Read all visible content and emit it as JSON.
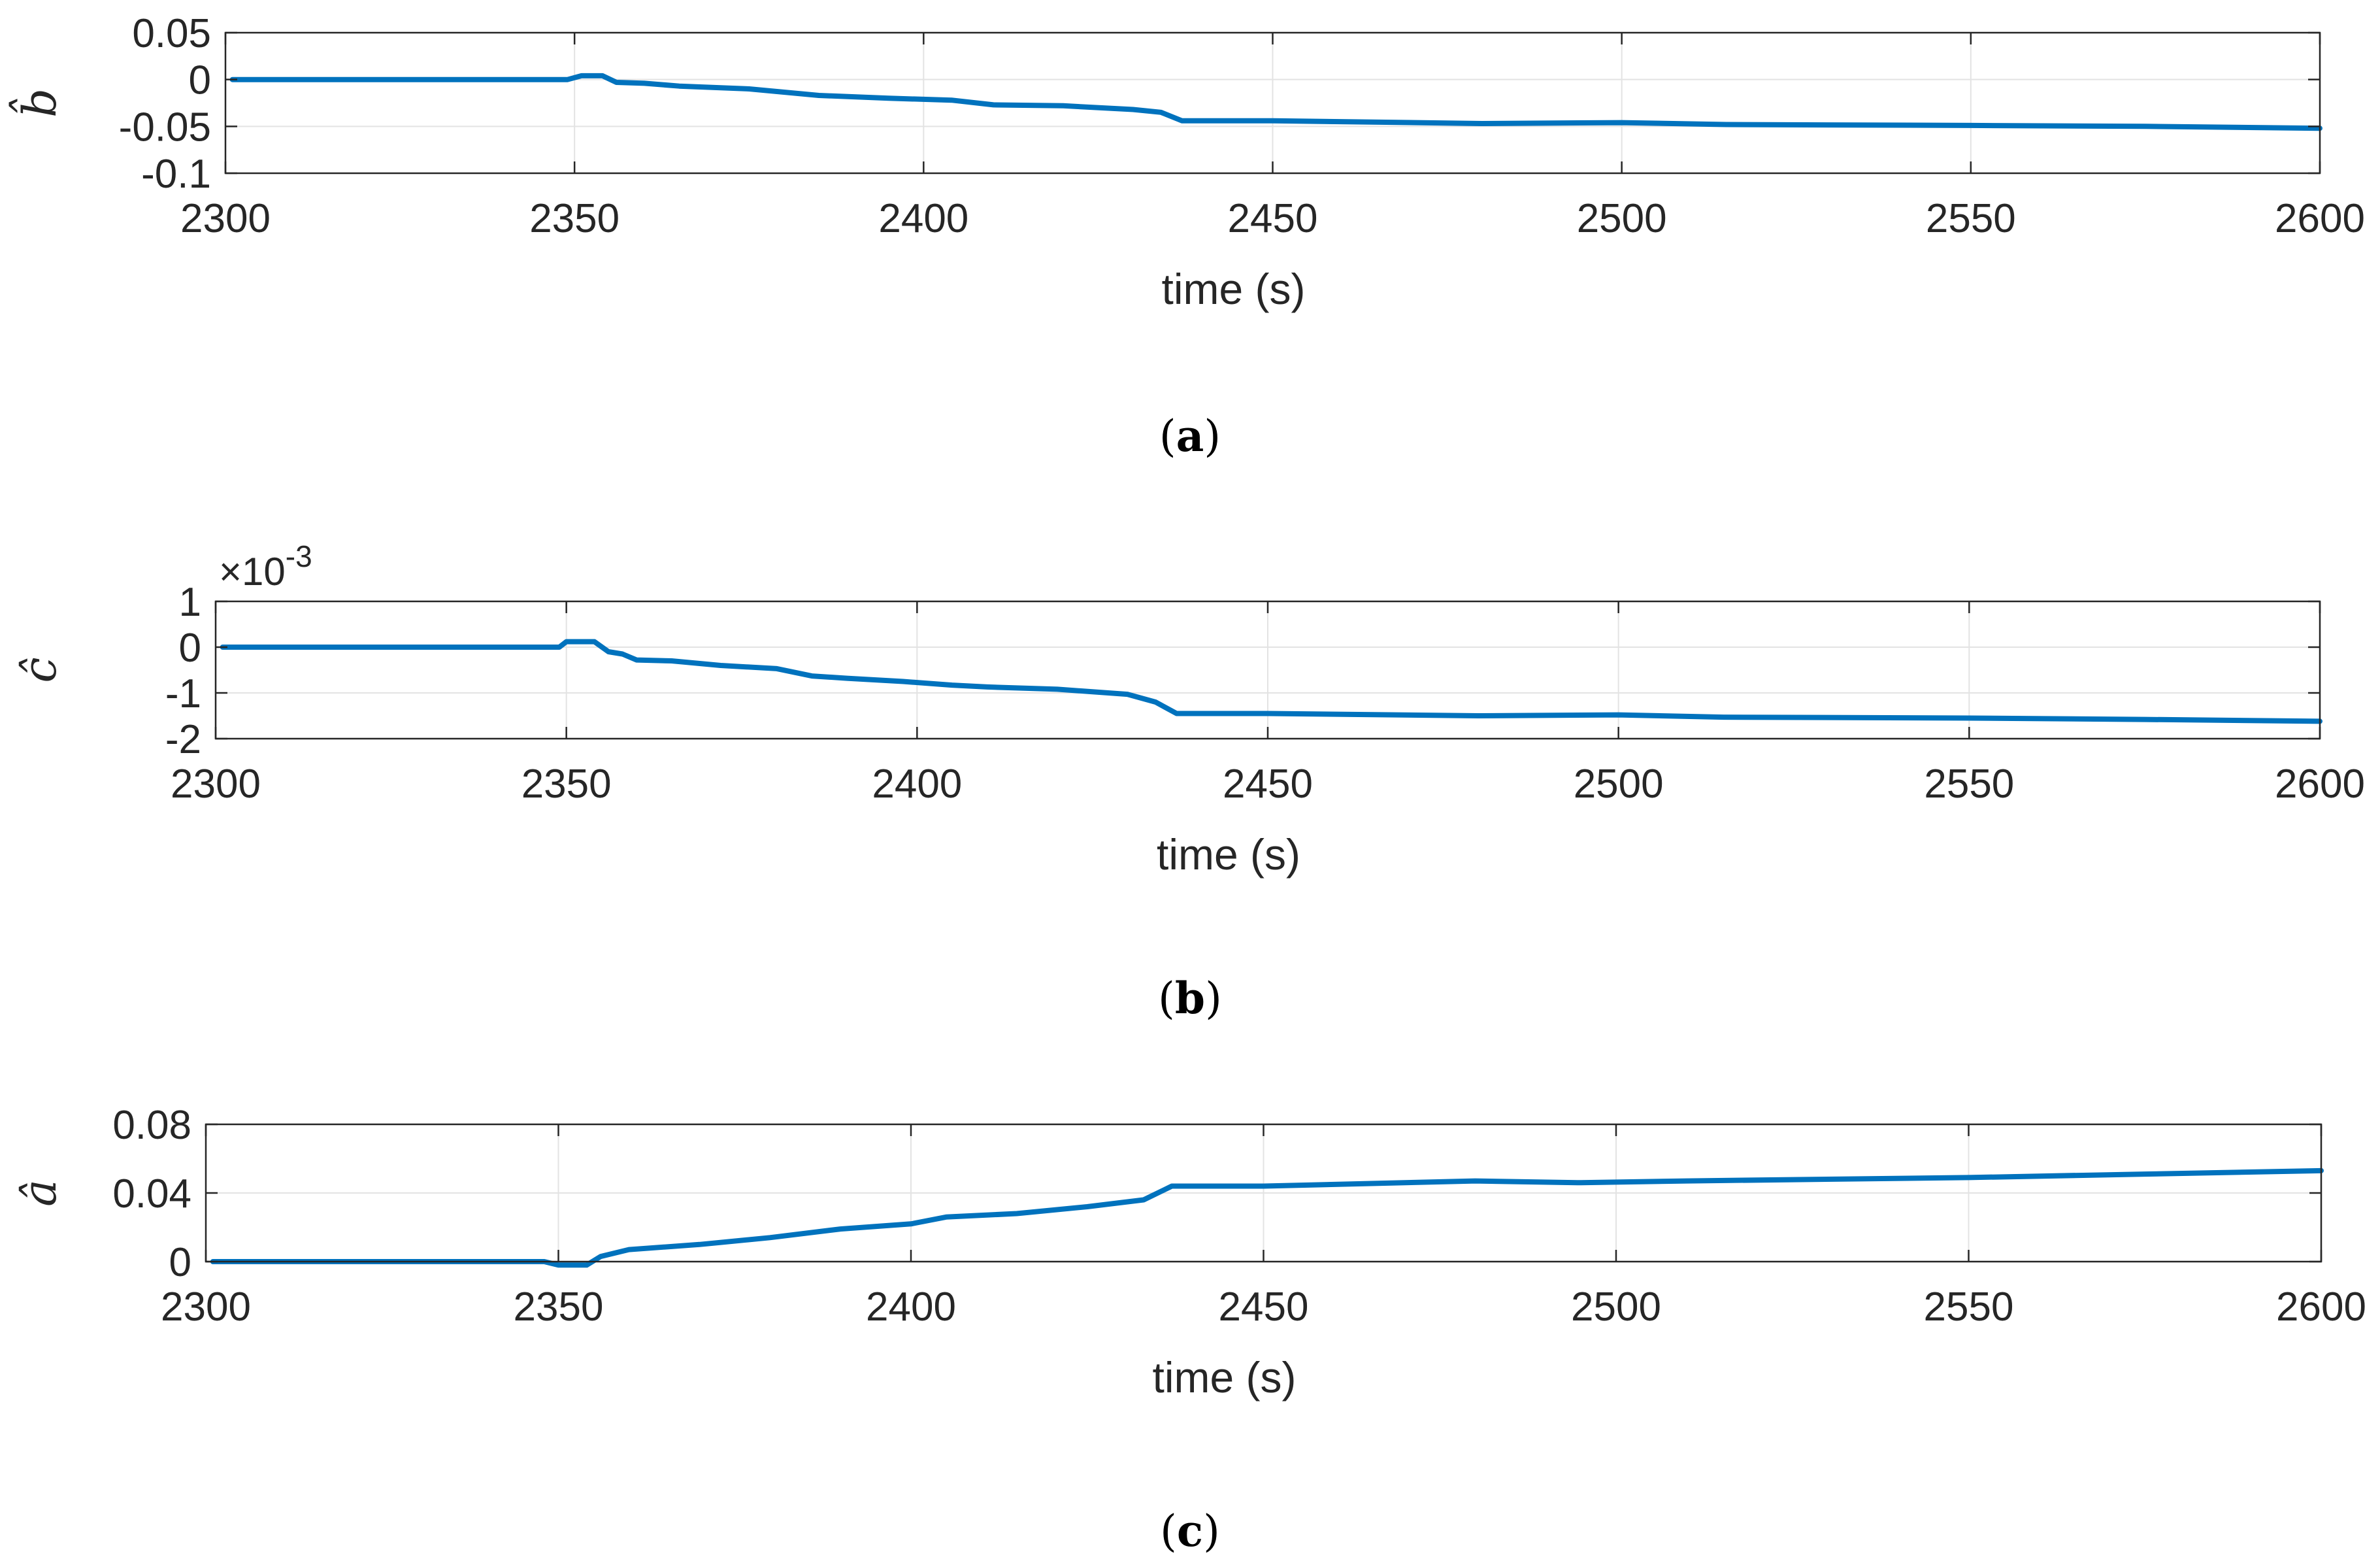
{
  "chart_data": [
    {
      "type": "line",
      "panel_label": "a",
      "ylabel": "b̂",
      "xlabel": "time (s)",
      "xlim": [
        2300,
        2600
      ],
      "ylim": [
        -0.1,
        0.05
      ],
      "xticks": [
        2300,
        2350,
        2400,
        2450,
        2500,
        2550,
        2600
      ],
      "xtick_labels": [
        "2300",
        "2350",
        "2400",
        "2450",
        "2500",
        "2550",
        "2600"
      ],
      "yticks": [
        0.05,
        0,
        -0.05,
        -0.1
      ],
      "ytick_labels": [
        "0.05",
        "0",
        "-0.05",
        "-0.1"
      ],
      "grid": true,
      "series": [
        {
          "color": "#0072BD",
          "x": [
            2301,
            2349,
            2351,
            2354,
            2356,
            2360,
            2365,
            2375,
            2385,
            2395,
            2404,
            2410,
            2420,
            2430,
            2434,
            2437,
            2450,
            2480,
            2500,
            2515,
            2550,
            2575,
            2600
          ],
          "y": [
            0,
            0,
            0.004,
            0.004,
            -0.003,
            -0.004,
            -0.007,
            -0.01,
            -0.017,
            -0.02,
            -0.022,
            -0.027,
            -0.028,
            -0.032,
            -0.035,
            -0.044,
            -0.044,
            -0.047,
            -0.046,
            -0.048,
            -0.049,
            -0.05,
            -0.052
          ]
        }
      ]
    },
    {
      "type": "line",
      "panel_label": "b",
      "ylabel": "ĉ",
      "xlabel": "time (s)",
      "exponent_label": "×10",
      "exponent_power": "-3",
      "xlim": [
        2300,
        2600
      ],
      "ylim": [
        -2,
        1
      ],
      "xticks": [
        2300,
        2350,
        2400,
        2450,
        2500,
        2550,
        2600
      ],
      "xtick_labels": [
        "2300",
        "2350",
        "2400",
        "2450",
        "2500",
        "2550",
        "2600"
      ],
      "yticks": [
        1,
        0,
        -1,
        -2
      ],
      "ytick_labels": [
        "1",
        "0",
        "-1",
        "-2"
      ],
      "grid": true,
      "series": [
        {
          "color": "#0072BD",
          "x": [
            2301,
            2349,
            2350,
            2354,
            2356,
            2358,
            2360,
            2365,
            2372,
            2380,
            2385,
            2390,
            2398,
            2405,
            2410,
            2420,
            2430,
            2434,
            2437,
            2450,
            2480,
            2500,
            2515,
            2550,
            2575,
            2600
          ],
          "y": [
            0,
            0,
            0.12,
            0.12,
            -0.1,
            -0.15,
            -0.28,
            -0.3,
            -0.4,
            -0.47,
            -0.63,
            -0.68,
            -0.75,
            -0.83,
            -0.87,
            -0.92,
            -1.03,
            -1.2,
            -1.45,
            -1.45,
            -1.5,
            -1.48,
            -1.53,
            -1.55,
            -1.58,
            -1.62
          ]
        }
      ]
    },
    {
      "type": "line",
      "panel_label": "c",
      "ylabel": "â",
      "xlabel": "time (s)",
      "xlim": [
        2300,
        2600
      ],
      "ylim": [
        0,
        0.08
      ],
      "xticks": [
        2300,
        2350,
        2400,
        2450,
        2500,
        2550,
        2600
      ],
      "xtick_labels": [
        "2300",
        "2350",
        "2400",
        "2450",
        "2500",
        "2550",
        "2600"
      ],
      "yticks": [
        0.08,
        0.04,
        0
      ],
      "ytick_labels": [
        "0.08",
        "0.04",
        "0"
      ],
      "grid": true,
      "series": [
        {
          "color": "#0072BD",
          "x": [
            2301,
            2348,
            2350,
            2354,
            2356,
            2360,
            2370,
            2380,
            2390,
            2400,
            2405,
            2415,
            2425,
            2433,
            2437,
            2450,
            2480,
            2495,
            2510,
            2550,
            2575,
            2600
          ],
          "y": [
            0,
            0,
            -0.002,
            -0.002,
            0.003,
            0.007,
            0.01,
            0.014,
            0.019,
            0.022,
            0.026,
            0.028,
            0.032,
            0.036,
            0.044,
            0.044,
            0.047,
            0.046,
            0.047,
            0.049,
            0.051,
            0.053
          ]
        }
      ]
    }
  ]
}
